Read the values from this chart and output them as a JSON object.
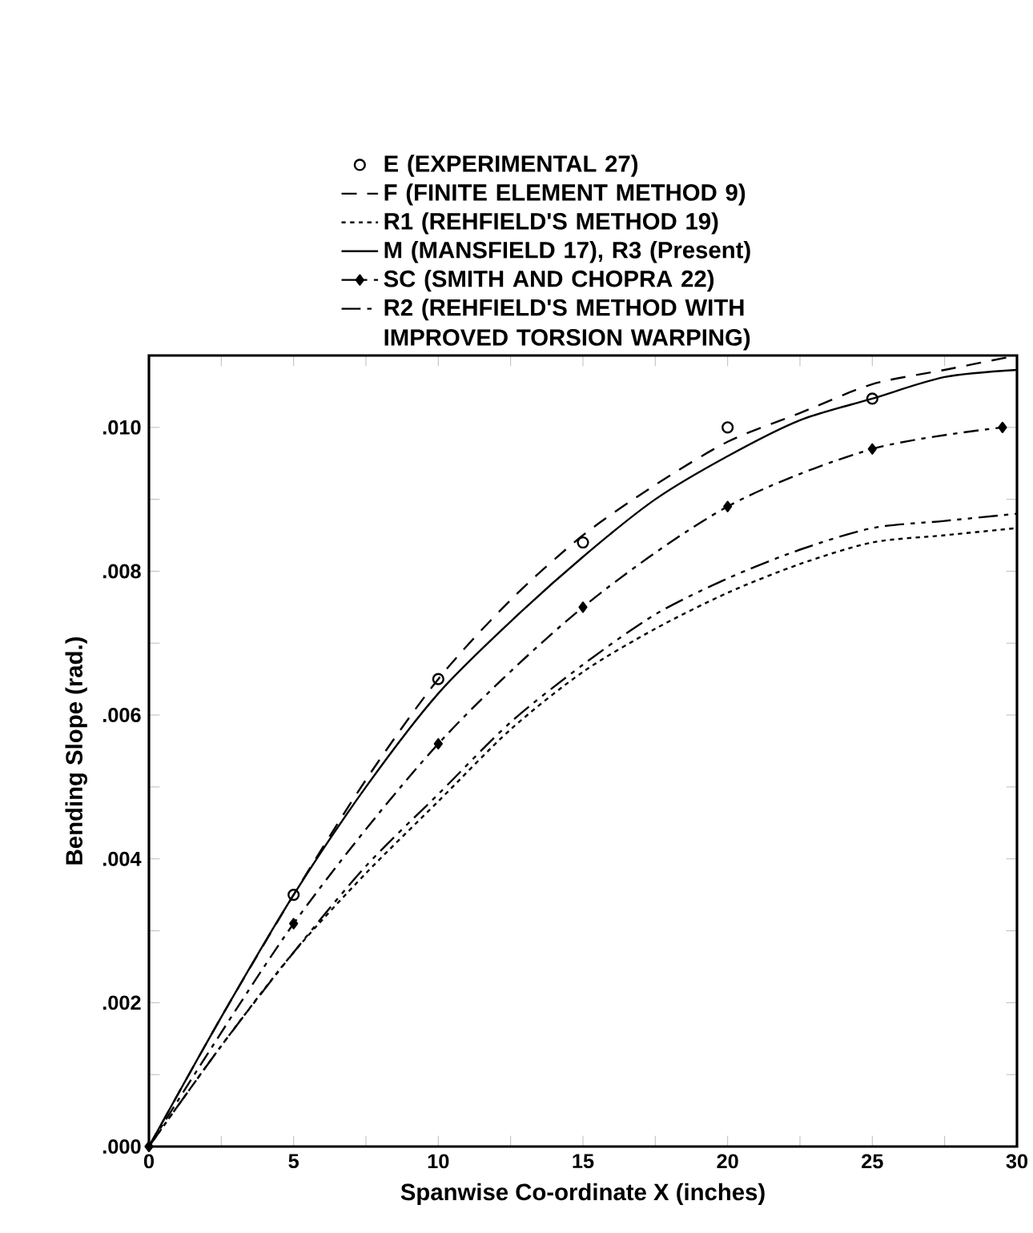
{
  "chart_data": {
    "type": "line",
    "xlabel": "Spanwise Co-ordinate X (inches)",
    "ylabel": "Bending Slope (rad.)",
    "xlim": [
      0,
      30
    ],
    "ylim": [
      0,
      0.011
    ],
    "xticks": [
      0,
      {
        "value": 2.5,
        "label": null
      },
      5,
      {
        "value": 7.5,
        "label": null
      },
      10,
      {
        "value": 12.5,
        "label": null
      },
      15,
      {
        "value": 17.5,
        "label": null
      },
      20,
      {
        "value": 22.5,
        "label": null
      },
      25,
      {
        "value": 27.5,
        "label": null
      },
      30
    ],
    "yticks": [
      {
        "value": 0,
        "label": ".000"
      },
      {
        "value": 0.001,
        "label": null
      },
      {
        "value": 0.002,
        "label": ".002"
      },
      {
        "value": 0.003,
        "label": null
      },
      {
        "value": 0.004,
        "label": ".004"
      },
      {
        "value": 0.005,
        "label": null
      },
      {
        "value": 0.006,
        "label": ".006"
      },
      {
        "value": 0.007,
        "label": null
      },
      {
        "value": 0.008,
        "label": ".008"
      },
      {
        "value": 0.009,
        "label": null
      },
      {
        "value": 0.01,
        "label": ".010"
      }
    ],
    "legend": "top",
    "grid": false,
    "series": [
      {
        "name": "E (EXPERIMENTAL 27)",
        "type": "scatter",
        "marker": "circle",
        "color": "#000000",
        "x": [
          5,
          10,
          15,
          20,
          25
        ],
        "values": [
          0.0035,
          0.0065,
          0.0084,
          0.01,
          0.0104
        ]
      },
      {
        "name": "F (FINITE ELEMENT METHOD 9)",
        "line_style": "dashed",
        "color": "#000000",
        "x": [
          0,
          2.5,
          5,
          7.5,
          10,
          12.5,
          15,
          17.5,
          20,
          22.5,
          25,
          27.5,
          30
        ],
        "values": [
          0,
          0.0018,
          0.0035,
          0.0051,
          0.0065,
          0.0076,
          0.0085,
          0.0092,
          0.0098,
          0.0102,
          0.0106,
          0.0108,
          0.011
        ]
      },
      {
        "name": "R1 (REHFIELD'S METHOD 19)",
        "line_style": "dotted",
        "color": "#000000",
        "x": [
          0,
          2.5,
          5,
          7.5,
          10,
          12.5,
          15,
          17.5,
          20,
          22.5,
          25,
          27.5,
          30
        ],
        "values": [
          0,
          0.0014,
          0.0027,
          0.0038,
          0.0048,
          0.0058,
          0.0066,
          0.0072,
          0.0077,
          0.0081,
          0.0084,
          0.0085,
          0.0086
        ]
      },
      {
        "name": "M (MANSFIELD 17), R3 (Present)",
        "line_style": "solid",
        "color": "#000000",
        "x": [
          0,
          2.5,
          5,
          7.5,
          10,
          12.5,
          15,
          17.5,
          20,
          22.5,
          25,
          27.5,
          30
        ],
        "values": [
          0,
          0.0018,
          0.0035,
          0.005,
          0.0063,
          0.0073,
          0.0082,
          0.009,
          0.0096,
          0.0101,
          0.0104,
          0.0107,
          0.0108
        ]
      },
      {
        "name": "SC (SMITH AND CHOPRA 22)",
        "line_style": "dashdot",
        "marker": "diamond",
        "color": "#000000",
        "x": [
          0,
          5,
          10,
          15,
          20,
          25,
          29.5
        ],
        "values": [
          0,
          0.0031,
          0.0056,
          0.0075,
          0.0089,
          0.0097,
          0.01
        ]
      },
      {
        "name": "R2 (REHFIELD'S METHOD WITH IMPROVED TORSION WARPING)",
        "line_style": "dashdotdot",
        "color": "#000000",
        "x": [
          0,
          2.5,
          5,
          7.5,
          10,
          12.5,
          15,
          17.5,
          20,
          22.5,
          25,
          27.5,
          30
        ],
        "values": [
          0,
          0.0014,
          0.0027,
          0.0039,
          0.0049,
          0.0059,
          0.0067,
          0.0074,
          0.0079,
          0.0083,
          0.0086,
          0.0087,
          0.0088
        ]
      }
    ]
  }
}
